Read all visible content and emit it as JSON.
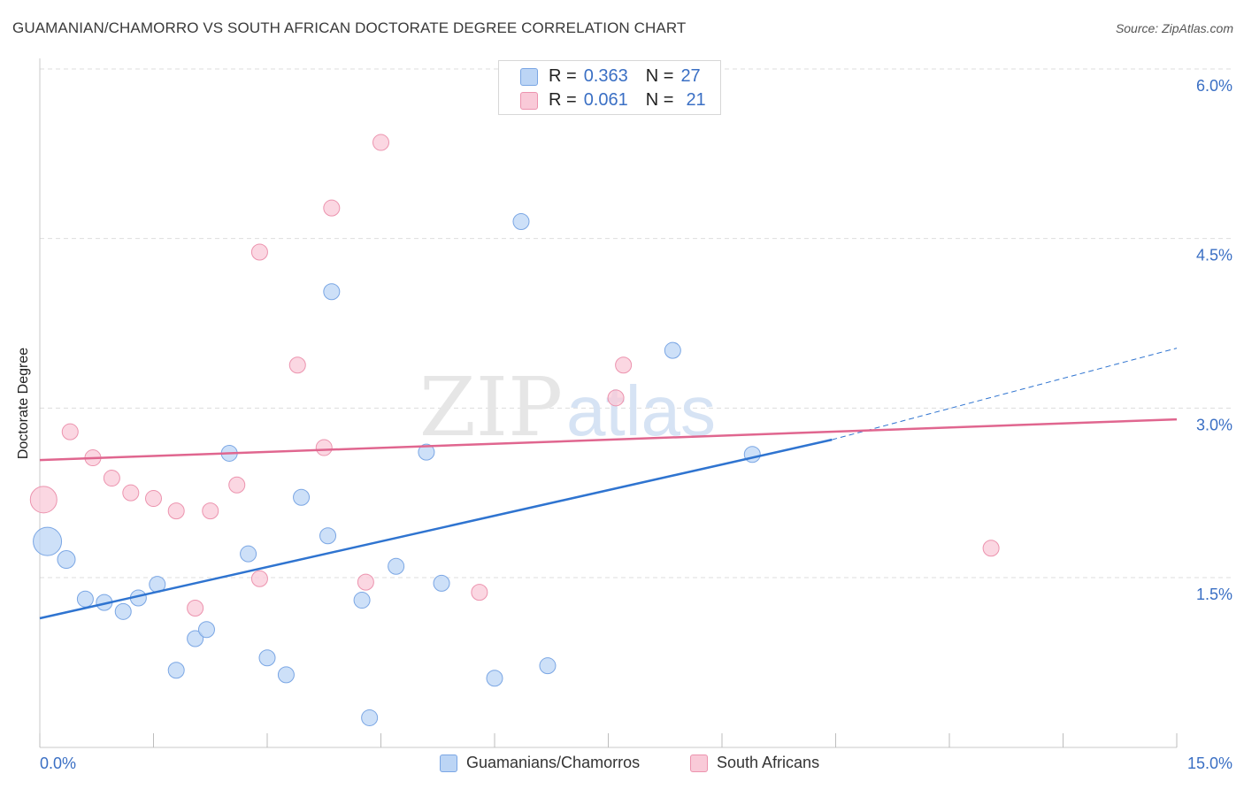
{
  "header": {
    "title": "GUAMANIAN/CHAMORRO VS SOUTH AFRICAN DOCTORATE DEGREE CORRELATION CHART",
    "source": "Source: ZipAtlas.com"
  },
  "stats": [
    {
      "r_label": "R =",
      "r_value": "0.363",
      "n_label": "N =",
      "n_value": "27"
    },
    {
      "r_label": "R =",
      "r_value": "0.061",
      "n_label": "N =",
      "n_value": "21"
    }
  ],
  "legend": [
    "Guamanians/Chamorros",
    "South Africans"
  ],
  "colors": {
    "blue_fill": "#bcd5f5",
    "blue_stroke": "#7aa6e4",
    "blue_line": "#2f74d0",
    "pink_fill": "#f9cad8",
    "pink_stroke": "#ec93ae",
    "pink_line": "#e0668f",
    "tick_label": "#3a6fc4",
    "grid": "#dddddd"
  },
  "watermark": {
    "left": "ZIP",
    "right": "atlas"
  },
  "chart_data": {
    "type": "scatter",
    "title": "GUAMANIAN/CHAMORRO VS SOUTH AFRICAN DOCTORATE DEGREE CORRELATION CHART",
    "xlabel": "",
    "ylabel": "Doctorate Degree",
    "xlim": [
      0,
      15
    ],
    "ylim": [
      0,
      6.2
    ],
    "x_tick_labels": [
      "0.0%",
      "15.0%"
    ],
    "y_ticks": [
      1.5,
      3.0,
      4.5,
      6.0
    ],
    "y_tick_labels": [
      "1.5%",
      "3.0%",
      "4.5%",
      "6.0%"
    ],
    "grid": true,
    "legend_position": "bottom",
    "series": [
      {
        "name": "Guamanians/Chamorros",
        "r": 0.363,
        "n": 27,
        "points": [
          [
            0.1,
            1.82,
            16
          ],
          [
            0.35,
            1.66,
            10
          ],
          [
            0.6,
            1.31,
            9
          ],
          [
            0.85,
            1.28,
            9
          ],
          [
            1.1,
            1.2,
            9
          ],
          [
            1.3,
            1.32,
            9
          ],
          [
            1.55,
            1.44,
            9
          ],
          [
            1.8,
            0.68,
            9
          ],
          [
            2.05,
            0.96,
            9
          ],
          [
            2.2,
            1.04,
            9
          ],
          [
            2.5,
            2.6,
            9
          ],
          [
            2.75,
            1.71,
            9
          ],
          [
            3.0,
            0.79,
            9
          ],
          [
            3.25,
            0.64,
            9
          ],
          [
            3.45,
            2.21,
            9
          ],
          [
            3.8,
            1.87,
            9
          ],
          [
            3.85,
            4.03,
            9
          ],
          [
            4.25,
            1.3,
            9
          ],
          [
            4.35,
            0.26,
            9
          ],
          [
            4.7,
            1.6,
            9
          ],
          [
            5.1,
            2.61,
            9
          ],
          [
            5.3,
            1.45,
            9
          ],
          [
            6.0,
            0.61,
            9
          ],
          [
            6.35,
            4.65,
            9
          ],
          [
            6.7,
            0.72,
            9
          ],
          [
            8.35,
            3.51,
            9
          ],
          [
            9.4,
            2.59,
            9
          ]
        ],
        "trend": {
          "x": [
            0,
            10.45
          ],
          "y": [
            1.14,
            2.72
          ]
        },
        "trend_extension": {
          "x": [
            10.45,
            15.0
          ],
          "y": [
            2.72,
            3.53
          ]
        }
      },
      {
        "name": "South Africans",
        "r": 0.061,
        "n": 21,
        "points": [
          [
            0.05,
            2.19,
            15
          ],
          [
            0.4,
            2.79,
            9
          ],
          [
            0.7,
            2.56,
            9
          ],
          [
            0.95,
            2.38,
            9
          ],
          [
            1.2,
            2.25,
            9
          ],
          [
            1.5,
            2.2,
            9
          ],
          [
            1.8,
            2.09,
            9
          ],
          [
            2.05,
            1.23,
            9
          ],
          [
            2.25,
            2.09,
            9
          ],
          [
            2.6,
            2.32,
            9
          ],
          [
            2.9,
            4.38,
            9
          ],
          [
            2.9,
            1.49,
            9
          ],
          [
            3.4,
            3.38,
            9
          ],
          [
            3.75,
            2.65,
            9
          ],
          [
            3.85,
            4.77,
            9
          ],
          [
            4.3,
            1.46,
            9
          ],
          [
            4.5,
            5.35,
            9
          ],
          [
            5.8,
            1.37,
            9
          ],
          [
            7.7,
            3.38,
            9
          ],
          [
            7.6,
            3.09,
            9
          ],
          [
            12.55,
            1.76,
            9
          ]
        ],
        "trend": {
          "x": [
            0,
            15.0
          ],
          "y": [
            2.54,
            2.9
          ]
        }
      }
    ]
  }
}
